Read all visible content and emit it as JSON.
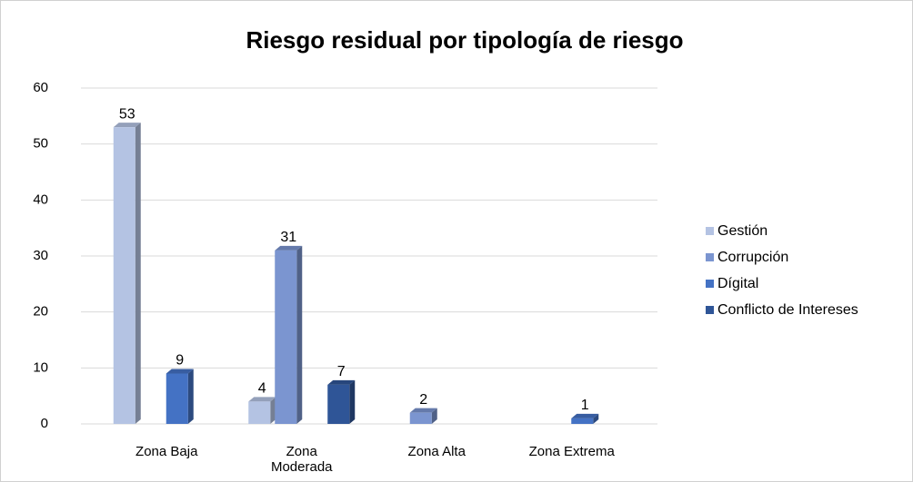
{
  "chart_data": {
    "type": "bar",
    "title": "Riesgo residual por tipología de riesgo",
    "categories": [
      "Zona Baja",
      "Zona Moderada",
      "Zona Alta",
      "Zona Extrema"
    ],
    "series": [
      {
        "name": "Gestión",
        "color": "#b4c3e3",
        "values": [
          53,
          4,
          null,
          null
        ]
      },
      {
        "name": "Corrupción",
        "color": "#7b95d0",
        "values": [
          null,
          31,
          2,
          null
        ]
      },
      {
        "name": "Dígital",
        "color": "#4472c4",
        "values": [
          9,
          null,
          null,
          1
        ]
      },
      {
        "name": "Conflicto de Intereses",
        "color": "#2f5597",
        "values": [
          null,
          7,
          null,
          null
        ]
      }
    ],
    "ylim": [
      0,
      60
    ],
    "yticks": [
      0,
      10,
      20,
      30,
      40,
      50,
      60
    ],
    "grid": true,
    "legend": "right"
  }
}
